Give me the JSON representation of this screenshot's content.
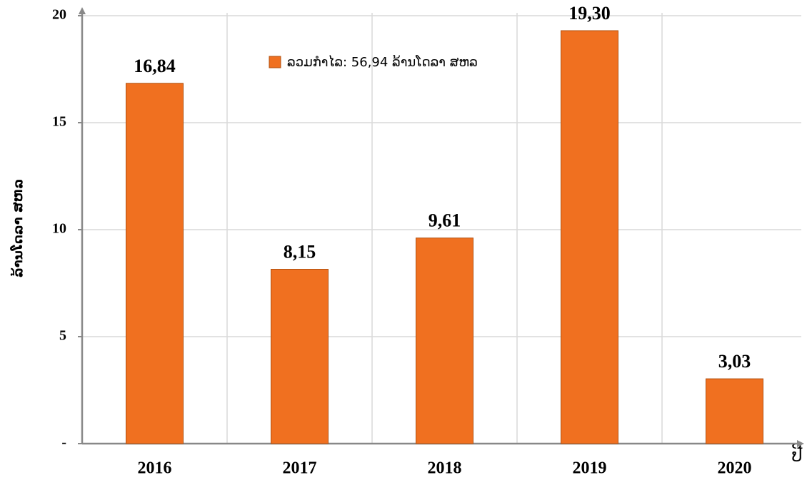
{
  "chart_data": {
    "type": "bar",
    "y_label": "ລ້ານໂດລາ ສຫລ",
    "x_label": "ປີ",
    "categories": [
      "2016",
      "2017",
      "2018",
      "2019",
      "2020"
    ],
    "series": [
      {
        "name": "ລວມກຳໄລ: 56,94 ລ້ານໂດລາ ສຫລ",
        "color": "#f07020",
        "values": [
          16.84,
          8.15,
          9.61,
          19.3,
          3.03
        ],
        "value_labels": [
          "16,84",
          "8,15",
          "9,61",
          "19,30",
          "3,03"
        ]
      }
    ],
    "ylim": [
      0,
      20
    ],
    "yticks": [
      {
        "value": 0,
        "label": "-"
      },
      5,
      10,
      15,
      20
    ],
    "grid": true,
    "legend": "top"
  }
}
